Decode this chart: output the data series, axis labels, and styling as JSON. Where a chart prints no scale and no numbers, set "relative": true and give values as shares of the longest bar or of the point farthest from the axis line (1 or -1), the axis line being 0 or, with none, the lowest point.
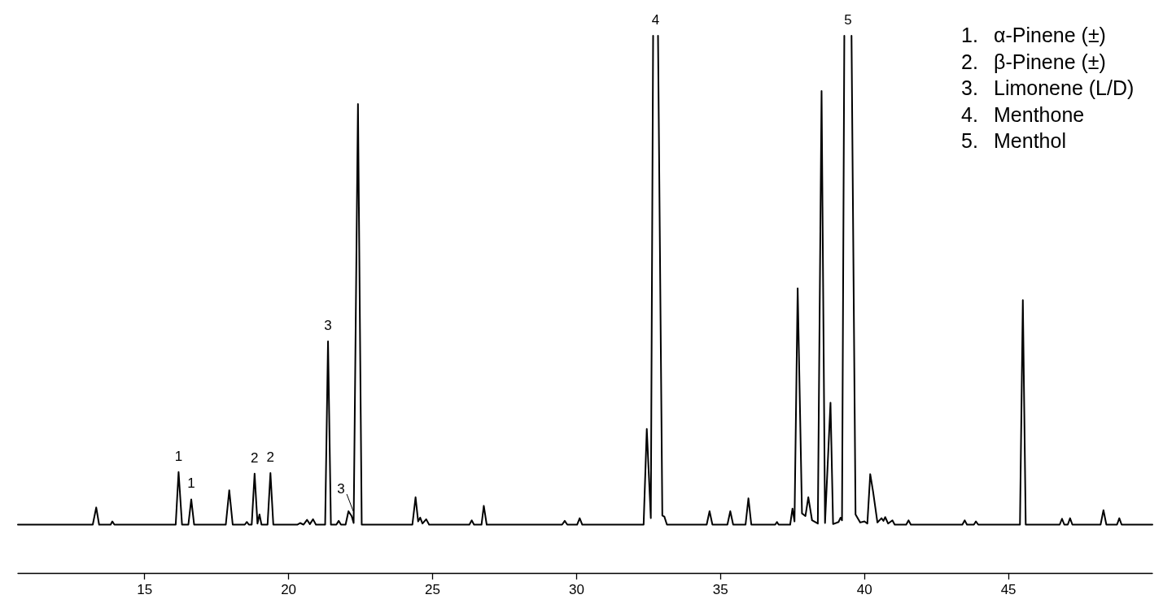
{
  "chart_data": {
    "type": "line",
    "relative": true,
    "color": "#000000",
    "marker": "none",
    "line_style": "solid",
    "grid": false,
    "xlim": [
      10.6,
      50
    ],
    "xticks": [
      15,
      20,
      25,
      30,
      35,
      40,
      45
    ],
    "x": [
      10.6,
      13.2,
      13.32,
      13.42,
      13.82,
      13.88,
      13.95,
      16.08,
      16.18,
      16.3,
      16.52,
      16.62,
      16.72,
      17.82,
      17.94,
      18.06,
      18.48,
      18.55,
      18.62,
      18.72,
      18.82,
      18.92,
      18.99,
      19.06,
      19.27,
      19.37,
      19.47,
      20.3,
      20.4,
      20.52,
      20.64,
      20.74,
      20.85,
      20.95,
      21.27,
      21.37,
      21.47,
      21.66,
      21.74,
      21.82,
      21.98,
      22.08,
      22.19,
      22.26,
      22.41,
      22.54,
      24.3,
      24.41,
      24.5,
      24.57,
      24.65,
      24.78,
      24.88,
      26.28,
      26.36,
      26.44,
      26.7,
      26.78,
      26.88,
      29.5,
      29.59,
      29.68,
      30.02,
      30.11,
      30.2,
      32.33,
      32.44,
      32.58,
      32.66,
      32.745,
      32.83,
      32.98,
      33.05,
      33.14,
      34.52,
      34.62,
      34.72,
      35.24,
      35.34,
      35.44,
      35.87,
      35.97,
      36.07,
      36.9,
      36.96,
      37.02,
      37.42,
      37.5,
      37.57,
      37.68,
      37.83,
      37.95,
      38.05,
      38.18,
      38.38,
      38.51,
      38.63,
      38.82,
      38.91,
      39.1,
      39.17,
      39.22,
      39.3,
      39.43,
      39.55,
      39.69,
      39.85,
      40,
      40.1,
      40.2,
      40.3,
      40.45,
      40.59,
      40.66,
      40.72,
      40.82,
      40.97,
      41.05,
      41.45,
      41.53,
      41.61,
      43.4,
      43.48,
      43.56,
      43.8,
      43.87,
      43.95,
      45.4,
      45.5,
      45.6,
      46.78,
      46.86,
      46.94,
      47.06,
      47.14,
      47.22,
      48.2,
      48.3,
      48.4,
      48.77,
      48.85,
      48.93,
      50
    ],
    "values": [
      0.09,
      0.09,
      0.122,
      0.09,
      0.09,
      0.096,
      0.09,
      0.09,
      0.188,
      0.09,
      0.09,
      0.137,
      0.09,
      0.09,
      0.154,
      0.09,
      0.09,
      0.095,
      0.09,
      0.09,
      0.185,
      0.092,
      0.109,
      0.09,
      0.09,
      0.186,
      0.09,
      0.09,
      0.093,
      0.09,
      0.099,
      0.091,
      0.1,
      0.09,
      0.09,
      0.431,
      0.09,
      0.09,
      0.097,
      0.09,
      0.09,
      0.115,
      0.106,
      0.093,
      0.873,
      0.09,
      0.09,
      0.141,
      0.096,
      0.103,
      0.092,
      0.1,
      0.09,
      0.09,
      0.098,
      0.09,
      0.09,
      0.125,
      0.09,
      0.09,
      0.097,
      0.09,
      0.09,
      0.102,
      0.09,
      0.09,
      0.268,
      0.102,
      1,
      null,
      1,
      0.107,
      0.105,
      0.09,
      0.09,
      0.115,
      0.09,
      0.09,
      0.115,
      0.09,
      0.09,
      0.139,
      0.09,
      0.09,
      0.095,
      0.09,
      0.09,
      0.12,
      0.096,
      0.53,
      0.111,
      0.106,
      0.141,
      0.098,
      0.092,
      0.897,
      0.093,
      0.317,
      0.091,
      0.095,
      0.103,
      0.098,
      1,
      null,
      1,
      0.109,
      0.094,
      0.096,
      0.092,
      0.184,
      0.151,
      0.094,
      0.102,
      0.097,
      0.104,
      0.092,
      0.098,
      0.09,
      0.09,
      0.098,
      0.09,
      0.09,
      0.098,
      0.09,
      0.09,
      0.096,
      0.09,
      0.09,
      0.508,
      0.09,
      0.09,
      0.101,
      0.09,
      0.09,
      0.102,
      0.09,
      0.09,
      0.117,
      0.09,
      0.09,
      0.102,
      0.09,
      0.09
    ],
    "annotations": [
      {
        "text": "1",
        "x": 16.18,
        "y": 0.188
      },
      {
        "text": "1",
        "x": 16.62,
        "y": 0.137
      },
      {
        "text": "2",
        "x": 18.82,
        "y": 0.185
      },
      {
        "text": "2",
        "x": 19.37,
        "y": 0.186
      },
      {
        "text": "3",
        "x": 21.37,
        "y": 0.431
      },
      {
        "text": "3",
        "x": 22.19,
        "y": 0.106
      },
      {
        "text": "4",
        "x": 32.745,
        "y": 1
      },
      {
        "text": "5",
        "x": 39.43,
        "y": 1
      },
      "1. α-Pinene (±)",
      "2. β-Pinene (±)",
      "3. Limonene (L/D)",
      "4. Menthone",
      "5. Menthol"
    ]
  }
}
